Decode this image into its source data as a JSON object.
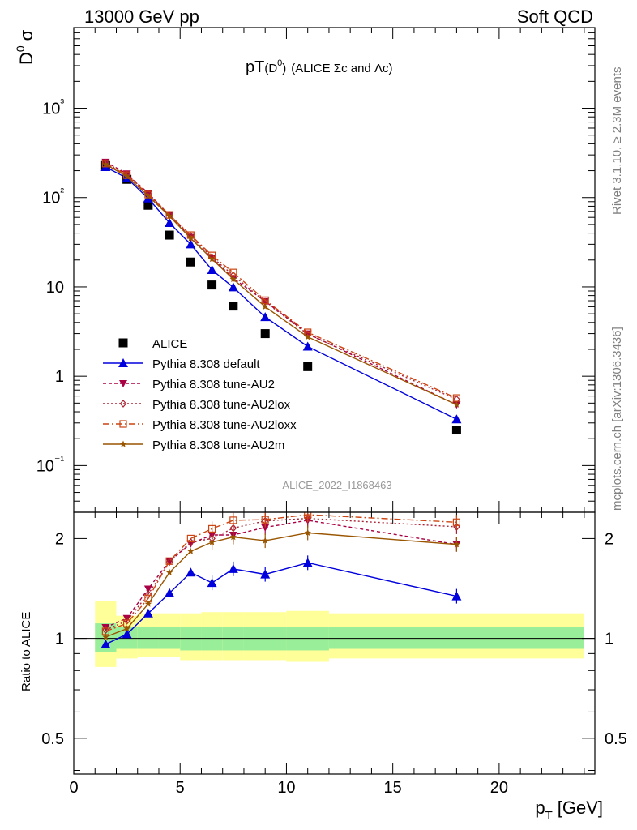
{
  "header": {
    "left": "13000 GeV pp",
    "right": "Soft QCD"
  },
  "main": {
    "title_main": "pT",
    "title_paren": "(D",
    "title_sup": "0",
    "title_close": ")",
    "title_suffix": "(ALICE Σc and Λc)",
    "ylabel_base": "D",
    "ylabel_sup": "0",
    "ylabel_tail": "σ",
    "analysis_label": "ALICE_2022_I1868463"
  },
  "ratio": {
    "ylabel": "Ratio to ALICE"
  },
  "xaxis": {
    "label_base": "p",
    "label_sub": "T",
    "label_unit": "[GeV]"
  },
  "side": {
    "rivet": "Rivet 3.1.10, ≥ 2.3M events",
    "mcplots": "mcplots.cern.ch [arXiv:1306.3436]"
  },
  "colors": {
    "data": "#000000",
    "default": "#0000dd",
    "au2": "#aa0044",
    "au2lox": "#aa2233",
    "au2loxx": "#cc4411",
    "au2m": "#995500",
    "band_inner": "#99ee99",
    "band_outer": "#ffff99"
  },
  "chart_data": [
    {
      "type": "scatter",
      "panel": "main",
      "yscale": "log",
      "xlim": [
        0,
        24.5
      ],
      "ylim": [
        0.03,
        8000
      ],
      "x": [
        1.5,
        2.5,
        3.5,
        4.5,
        5.5,
        6.5,
        7.5,
        9,
        11,
        18
      ],
      "x_ticks": [
        "0",
        "5",
        "10",
        "15",
        "20"
      ],
      "y_ticks": [
        "10⁻¹",
        "1",
        "10",
        "10²",
        "10³"
      ],
      "legend_position": "bottom-left",
      "series": [
        {
          "name": "ALICE",
          "marker": "square",
          "values": [
            228,
            160,
            82,
            38,
            19,
            10.5,
            6.1,
            3.0,
            1.28,
            0.25
          ]
        },
        {
          "name": "Pythia 8.308 default",
          "marker": "triangle-up",
          "values": [
            220,
            165,
            98,
            52,
            30,
            15.5,
            9.9,
            4.6,
            2.15,
            0.33
          ]
        },
        {
          "name": "Pythia 8.308 tune-AU2",
          "marker": "triangle-down",
          "values": [
            250,
            185,
            112,
            63,
            36,
            21,
            12.5,
            6.9,
            3.0,
            0.48
          ]
        },
        {
          "name": "Pythia 8.308 tune-AU2lox",
          "marker": "diamond",
          "values": [
            245,
            182,
            110,
            64,
            37,
            21.5,
            13.5,
            6.8,
            2.95,
            0.55
          ]
        },
        {
          "name": "Pythia 8.308 tune-AU2loxx",
          "marker": "square-open",
          "values": [
            240,
            178,
            108,
            64,
            38,
            22.5,
            14.5,
            7.1,
            3.1,
            0.57
          ]
        },
        {
          "name": "Pythia 8.308 tune-AU2m",
          "marker": "star",
          "values": [
            235,
            172,
            104,
            62,
            35,
            20.5,
            12.2,
            6.0,
            2.75,
            0.48
          ]
        }
      ]
    },
    {
      "type": "line",
      "panel": "ratio",
      "yscale": "log",
      "ylim": [
        0.39,
        2.4
      ],
      "y_ticks": [
        "0.5",
        "1",
        "2"
      ],
      "x": [
        1.5,
        2.5,
        3.5,
        4.5,
        5.5,
        6.5,
        7.5,
        9,
        11,
        18
      ],
      "series": [
        {
          "name": "Pythia 8.308 default",
          "values": [
            0.96,
            1.03,
            1.19,
            1.37,
            1.58,
            1.47,
            1.62,
            1.56,
            1.69,
            1.34
          ]
        },
        {
          "name": "Pythia 8.308 tune-AU2",
          "values": [
            1.08,
            1.15,
            1.41,
            1.71,
            1.93,
            2.05,
            2.05,
            2.16,
            2.27,
            1.92
          ]
        },
        {
          "name": "Pythia 8.308 tune-AU2lox",
          "values": [
            1.06,
            1.13,
            1.36,
            1.7,
            1.95,
            2.0,
            2.15,
            2.26,
            2.3,
            2.17
          ]
        },
        {
          "name": "Pythia 8.308 tune-AU2loxx",
          "values": [
            1.05,
            1.11,
            1.32,
            1.71,
            2.0,
            2.14,
            2.27,
            2.28,
            2.36,
            2.24
          ]
        },
        {
          "name": "Pythia 8.308 tune-AU2m",
          "values": [
            1.01,
            1.07,
            1.27,
            1.58,
            1.83,
            1.95,
            2.02,
            1.97,
            2.08,
            1.92
          ]
        }
      ],
      "band_edges": [
        1,
        2,
        3,
        4,
        5,
        6,
        7,
        8,
        10,
        12,
        24
      ],
      "band_inner": [
        [
          0.91,
          1.11
        ],
        [
          0.93,
          1.08
        ],
        [
          0.93,
          1.08
        ],
        [
          0.93,
          1.08
        ],
        [
          0.92,
          1.08
        ],
        [
          0.92,
          1.08
        ],
        [
          0.92,
          1.08
        ],
        [
          0.92,
          1.08
        ],
        [
          0.92,
          1.08
        ],
        [
          0.93,
          1.08
        ]
      ],
      "band_outer": [
        [
          0.82,
          1.3
        ],
        [
          0.87,
          1.17
        ],
        [
          0.88,
          1.19
        ],
        [
          0.88,
          1.19
        ],
        [
          0.86,
          1.19
        ],
        [
          0.86,
          1.2
        ],
        [
          0.86,
          1.2
        ],
        [
          0.86,
          1.2
        ],
        [
          0.85,
          1.21
        ],
        [
          0.87,
          1.19
        ]
      ]
    }
  ]
}
